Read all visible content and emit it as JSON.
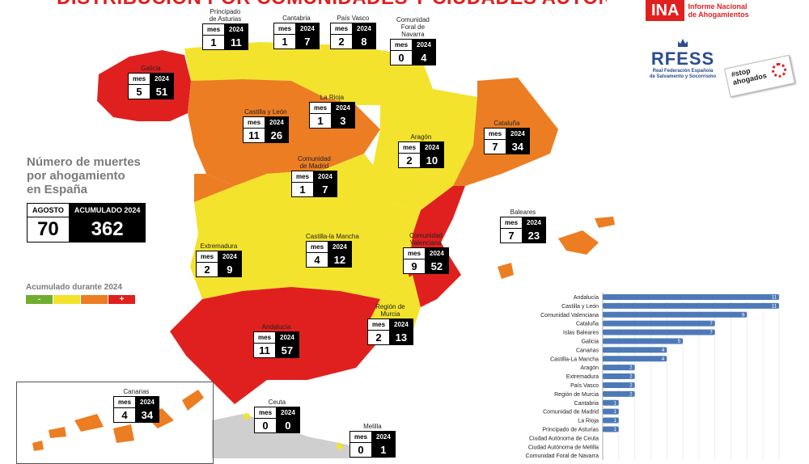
{
  "title": "DISTRIBUCIÓN POR COMUNIDADES Y CIUDADES AUTÓNOMAS",
  "logos": {
    "ina_mark": "INA",
    "ina_text": "Informe Nacional\nde Ahogamientos",
    "rfess_mark": "RFESS",
    "rfess_text": "Real Federación Española\nde Salvamento y Socorrismo",
    "stop_text": "#stop\nahogados"
  },
  "summary": {
    "heading": "Número de muertes\npor ahogamiento\nen España",
    "agosto_label": "AGOSTO",
    "acumulado_label": "ACUMULADO 2024",
    "agosto_value": "70",
    "acumulado_value": "362"
  },
  "legend": {
    "title": "Acumulado durante 2024",
    "minus": "-",
    "plus": "+",
    "colors": [
      "#6fae2f",
      "#f3e32c",
      "#ec7d23",
      "#e0201f"
    ]
  },
  "colors": {
    "red": "#e0201f",
    "orange": "#ec7d23",
    "yellow": "#f3e32c",
    "bar": "#4d79b8"
  },
  "regions": [
    {
      "name": "Principado\nde Asturias",
      "mes": "1",
      "y2024": "11",
      "fill": "yellow"
    },
    {
      "name": "Cantabria",
      "mes": "1",
      "y2024": "7",
      "fill": "yellow"
    },
    {
      "name": "País Vasco",
      "mes": "2",
      "y2024": "8",
      "fill": "yellow"
    },
    {
      "name": "Comunidad\nForal de\nNavarra",
      "mes": "0",
      "y2024": "4",
      "fill": "yellow"
    },
    {
      "name": "Galicia",
      "mes": "5",
      "y2024": "51",
      "fill": "red"
    },
    {
      "name": "La Rioja",
      "mes": "1",
      "y2024": "3",
      "fill": "yellow"
    },
    {
      "name": "Castilla y León",
      "mes": "11",
      "y2024": "26",
      "fill": "orange"
    },
    {
      "name": "Cataluña",
      "mes": "7",
      "y2024": "34",
      "fill": "orange"
    },
    {
      "name": "Aragón",
      "mes": "2",
      "y2024": "10",
      "fill": "yellow"
    },
    {
      "name": "Comunidad\nde Madrid",
      "mes": "1",
      "y2024": "7",
      "fill": "yellow"
    },
    {
      "name": "Baleares",
      "mes": "7",
      "y2024": "23",
      "fill": "orange"
    },
    {
      "name": "Extremadura",
      "mes": "2",
      "y2024": "9",
      "fill": "yellow"
    },
    {
      "name": "Castilla-la Mancha",
      "mes": "4",
      "y2024": "12",
      "fill": "yellow"
    },
    {
      "name": "Comunidad\nValenciana",
      "mes": "9",
      "y2024": "52",
      "fill": "red"
    },
    {
      "name": "Región de\nMurcia",
      "mes": "2",
      "y2024": "13",
      "fill": "yellow"
    },
    {
      "name": "Andalucía",
      "mes": "11",
      "y2024": "57",
      "fill": "red"
    },
    {
      "name": "Ceuta",
      "mes": "0",
      "y2024": "0",
      "fill": "yellow"
    },
    {
      "name": "Melilla",
      "mes": "0",
      "y2024": "1",
      "fill": "yellow"
    },
    {
      "name": "Canarias",
      "mes": "4",
      "y2024": "34",
      "fill": "orange"
    }
  ],
  "table_headers": {
    "mes": "mes",
    "year": "2024"
  },
  "chart_data": {
    "type": "bar",
    "orientation": "horizontal",
    "categories": [
      "Andalucía",
      "Castilla y León",
      "Comunidad Valenciana",
      "Cataluña",
      "Islas Baleares",
      "Galicia",
      "Canarias",
      "Castilla-La Mancha",
      "Aragón",
      "Extremadura",
      "País Vasco",
      "Región de Murcia",
      "Cantabria",
      "Comunidad de Madrid",
      "La Rioja",
      "Principado de Asturias",
      "Ciudad Autónoma de Ceuta",
      "Ciudad Autónoma de Melilla",
      "Comunidad Foral de Navarra"
    ],
    "values": [
      11,
      11,
      9,
      7,
      7,
      5,
      4,
      4,
      2,
      2,
      2,
      2,
      1,
      1,
      1,
      1,
      0,
      0,
      0
    ],
    "xlim": [
      0,
      11
    ],
    "grid": true
  }
}
